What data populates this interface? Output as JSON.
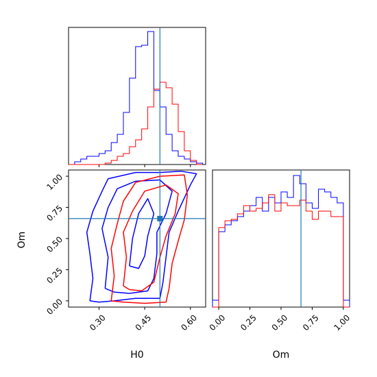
{
  "chart_data": [
    {
      "panel": "H0 marginal",
      "type": "histogram",
      "x_range": [
        0.2,
        0.65
      ],
      "series": [
        {
          "color": "#0000ff",
          "bin_edges": [
            0.2,
            0.22,
            0.24,
            0.26,
            0.28,
            0.3,
            0.32,
            0.34,
            0.36,
            0.38,
            0.4,
            0.42,
            0.44,
            0.46,
            0.48,
            0.5,
            0.52,
            0.54,
            0.56,
            0.58,
            0.6,
            0.62,
            0.64
          ],
          "heights": [
            0.0,
            0.02,
            0.04,
            0.06,
            0.06,
            0.08,
            0.1,
            0.16,
            0.22,
            0.38,
            0.63,
            0.86,
            0.87,
            0.97,
            0.54,
            0.42,
            0.22,
            0.1,
            0.06,
            0.04,
            0.02,
            0.01
          ]
        },
        {
          "color": "#ff0000",
          "bin_edges": [
            0.2,
            0.22,
            0.24,
            0.26,
            0.28,
            0.3,
            0.32,
            0.34,
            0.36,
            0.38,
            0.4,
            0.42,
            0.44,
            0.46,
            0.48,
            0.5,
            0.52,
            0.54,
            0.56,
            0.58,
            0.6,
            0.62,
            0.64
          ],
          "heights": [
            0.0,
            0.0,
            0.0,
            0.0,
            0.0,
            0.0,
            0.01,
            0.03,
            0.06,
            0.08,
            0.13,
            0.18,
            0.26,
            0.42,
            0.55,
            0.6,
            0.56,
            0.44,
            0.24,
            0.1,
            0.03,
            0.0
          ]
        }
      ],
      "truth_line": 0.5,
      "xticks": [
        0.3,
        0.45,
        0.6
      ]
    },
    {
      "panel": "Om marginal",
      "type": "histogram",
      "x_range": [
        -0.05,
        1.05
      ],
      "series": [
        {
          "color": "#0000ff",
          "bin_edges": [
            -0.05,
            0.0,
            0.05,
            0.1,
            0.15,
            0.2,
            0.25,
            0.3,
            0.35,
            0.4,
            0.45,
            0.5,
            0.55,
            0.6,
            0.65,
            0.7,
            0.75,
            0.8,
            0.85,
            0.9,
            0.95,
            1.0,
            1.05
          ],
          "heights": [
            0.05,
            0.55,
            0.6,
            0.63,
            0.66,
            0.7,
            0.74,
            0.8,
            0.7,
            0.8,
            0.76,
            0.84,
            0.8,
            0.96,
            0.9,
            0.76,
            0.72,
            0.86,
            0.84,
            0.8,
            0.76,
            0.05
          ]
        },
        {
          "color": "#ff0000",
          "bin_edges": [
            -0.05,
            0.0,
            0.05,
            0.1,
            0.15,
            0.2,
            0.25,
            0.3,
            0.35,
            0.4,
            0.45,
            0.5,
            0.55,
            0.6,
            0.65,
            0.7,
            0.75,
            0.8,
            0.85,
            0.9,
            0.95,
            1.0,
            1.05
          ],
          "heights": [
            0.0,
            0.58,
            0.63,
            0.64,
            0.68,
            0.74,
            0.7,
            0.72,
            0.76,
            0.82,
            0.7,
            0.76,
            0.74,
            0.74,
            0.78,
            0.7,
            0.64,
            0.7,
            0.7,
            0.66,
            0.66,
            0.0
          ]
        }
      ],
      "truth_line": 0.66,
      "xticks": [
        0.0,
        0.25,
        0.5,
        0.75,
        1.0
      ]
    },
    {
      "panel": "H0 vs Om",
      "type": "contour",
      "x_range": [
        0.2,
        0.65
      ],
      "y_range": [
        -0.05,
        1.05
      ],
      "xlabel": "H0",
      "ylabel": "Om",
      "xticks": [
        0.3,
        0.45,
        0.6
      ],
      "yticks": [
        0.0,
        0.25,
        0.5,
        0.75,
        1.0
      ],
      "truth_point": [
        0.5,
        0.66
      ],
      "series": [
        {
          "color": "#0000ff",
          "contours": [
            [
              [
                0.27,
                0.0
              ],
              [
                0.28,
                0.18
              ],
              [
                0.27,
                0.38
              ],
              [
                0.26,
                0.55
              ],
              [
                0.28,
                0.72
              ],
              [
                0.31,
                0.88
              ],
              [
                0.33,
                0.98
              ],
              [
                0.42,
                1.03
              ],
              [
                0.5,
                1.03
              ],
              [
                0.57,
                1.04
              ],
              [
                0.62,
                1.02
              ],
              [
                0.6,
                0.93
              ],
              [
                0.56,
                0.72
              ],
              [
                0.53,
                0.55
              ],
              [
                0.52,
                0.35
              ],
              [
                0.51,
                0.15
              ],
              [
                0.5,
                0.02
              ],
              [
                0.42,
                0.02
              ],
              [
                0.35,
                0.0
              ],
              [
                0.3,
                -0.01
              ],
              [
                0.27,
                0.0
              ]
            ],
            [
              [
                0.32,
                0.1
              ],
              [
                0.33,
                0.35
              ],
              [
                0.31,
                0.58
              ],
              [
                0.33,
                0.75
              ],
              [
                0.36,
                0.9
              ],
              [
                0.42,
                0.96
              ],
              [
                0.5,
                0.97
              ],
              [
                0.54,
                0.88
              ],
              [
                0.52,
                0.7
              ],
              [
                0.49,
                0.55
              ],
              [
                0.49,
                0.38
              ],
              [
                0.48,
                0.18
              ],
              [
                0.46,
                0.08
              ],
              [
                0.4,
                0.06
              ],
              [
                0.35,
                0.07
              ],
              [
                0.32,
                0.1
              ]
            ],
            [
              [
                0.4,
                0.28
              ],
              [
                0.41,
                0.5
              ],
              [
                0.43,
                0.7
              ],
              [
                0.46,
                0.82
              ],
              [
                0.48,
                0.7
              ],
              [
                0.46,
                0.52
              ],
              [
                0.45,
                0.36
              ],
              [
                0.43,
                0.26
              ],
              [
                0.4,
                0.28
              ]
            ]
          ]
        },
        {
          "color": "#ff0000",
          "contours": [
            [
              [
                0.34,
                0.0
              ],
              [
                0.35,
                0.2
              ],
              [
                0.34,
                0.42
              ],
              [
                0.36,
                0.62
              ],
              [
                0.38,
                0.8
              ],
              [
                0.42,
                0.95
              ],
              [
                0.5,
                1.0
              ],
              [
                0.58,
                1.01
              ],
              [
                0.59,
                0.85
              ],
              [
                0.58,
                0.65
              ],
              [
                0.56,
                0.48
              ],
              [
                0.54,
                0.3
              ],
              [
                0.53,
                0.1
              ],
              [
                0.52,
                -0.01
              ],
              [
                0.45,
                -0.02
              ],
              [
                0.38,
                -0.01
              ],
              [
                0.34,
                0.0
              ]
            ],
            [
              [
                0.38,
                0.12
              ],
              [
                0.39,
                0.35
              ],
              [
                0.38,
                0.55
              ],
              [
                0.41,
                0.72
              ],
              [
                0.45,
                0.88
              ],
              [
                0.52,
                0.93
              ],
              [
                0.56,
                0.86
              ],
              [
                0.55,
                0.7
              ],
              [
                0.52,
                0.52
              ],
              [
                0.5,
                0.35
              ],
              [
                0.48,
                0.15
              ],
              [
                0.44,
                0.08
              ],
              [
                0.4,
                0.09
              ],
              [
                0.38,
                0.12
              ]
            ]
          ]
        }
      ]
    }
  ]
}
